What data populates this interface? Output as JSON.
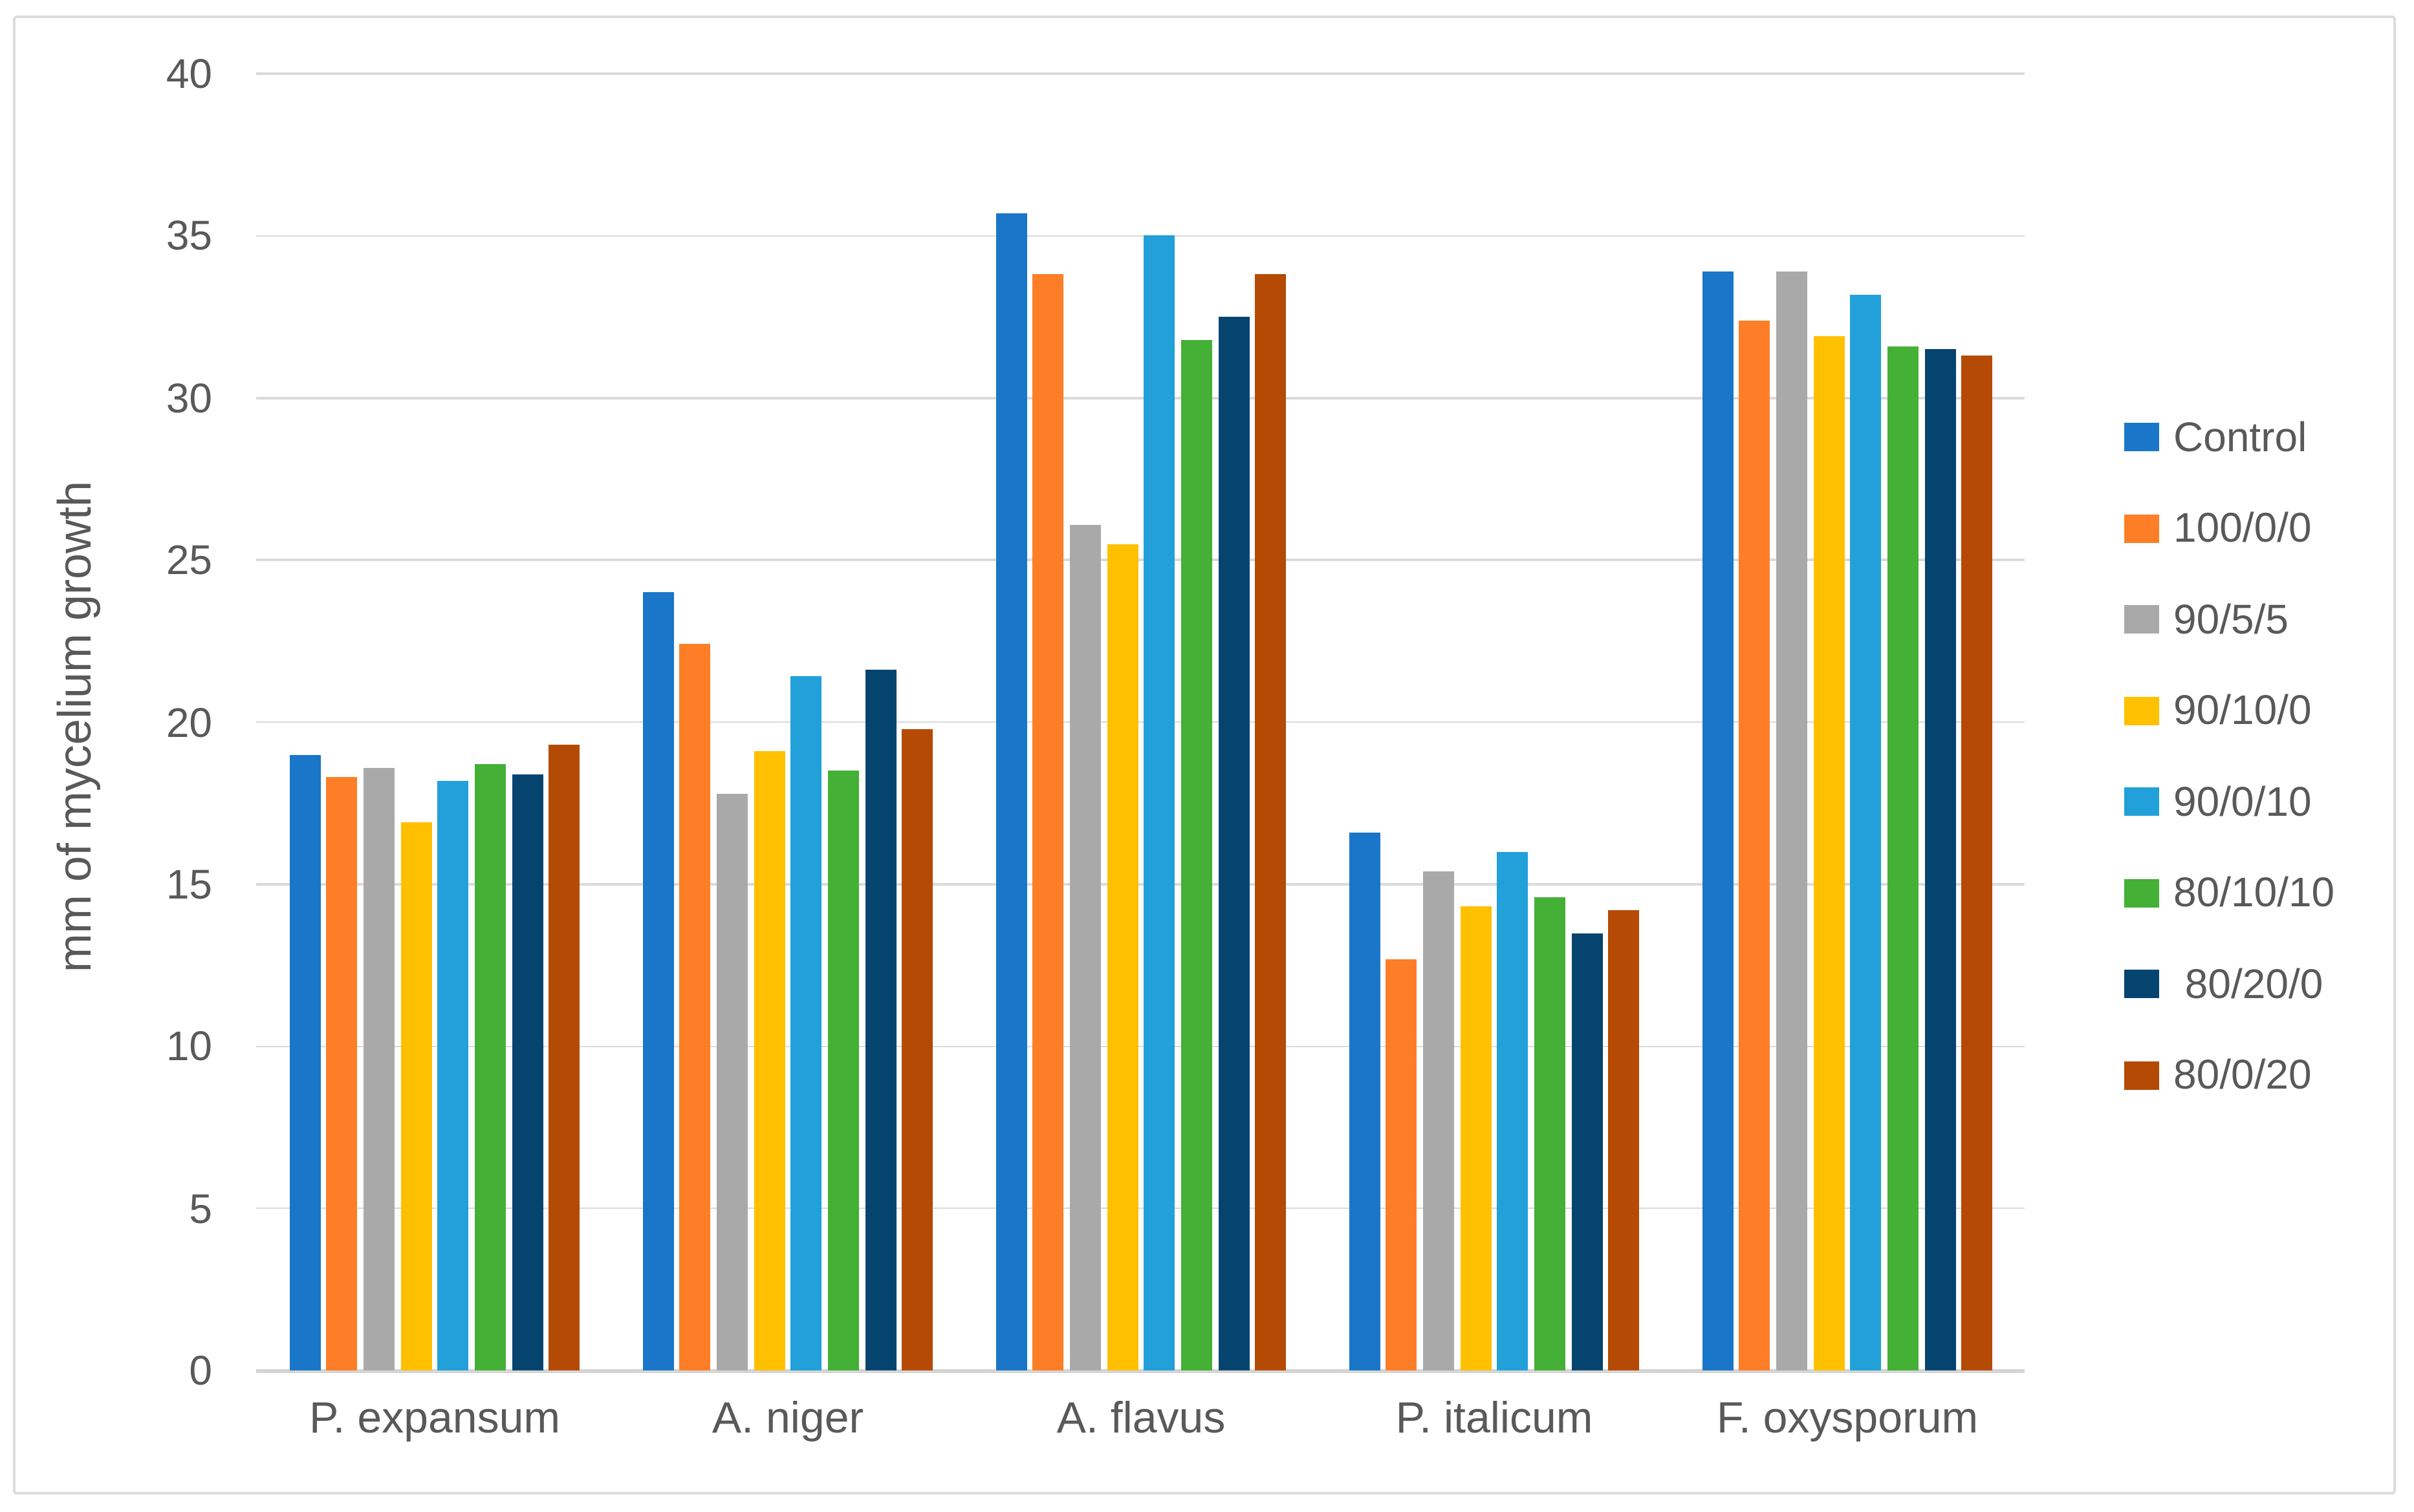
{
  "figure": {
    "background": "#ffffff",
    "border_color": "#DCDCDC",
    "text_color": "#595959",
    "gridline_color": "#DADADA",
    "axis_line_color": "#D4D4D4"
  },
  "chart_data": {
    "type": "bar",
    "title": "",
    "xlabel": "",
    "ylabel": "mm of mycelium growth",
    "ylim": [
      0,
      40
    ],
    "ytick_step": 5,
    "yticks": [
      0,
      5,
      10,
      15,
      20,
      25,
      30,
      35,
      40
    ],
    "grid": true,
    "legend_position": "right",
    "categories": [
      "P. expansum",
      "A. niger",
      "A. flavus",
      "P. italicum",
      "F. oxysporum"
    ],
    "series": [
      {
        "name": "Control",
        "color": "#1976C8",
        "values": [
          19.0,
          24.0,
          35.7,
          16.6,
          33.9
        ]
      },
      {
        "name": "100/0/0",
        "color": "#FD7E27",
        "values": [
          18.3,
          22.4,
          33.8,
          12.7,
          32.4
        ]
      },
      {
        "name": "90/5/5",
        "color": "#A9A9A9",
        "values": [
          18.6,
          17.8,
          26.1,
          15.4,
          33.9
        ]
      },
      {
        "name": "90/10/0",
        "color": "#FFC000",
        "values": [
          16.9,
          19.1,
          25.5,
          14.3,
          31.9
        ]
      },
      {
        "name": "90/0/10",
        "color": "#22A0D9",
        "values": [
          18.2,
          21.4,
          35.0,
          16.0,
          33.2
        ]
      },
      {
        "name": "80/10/10",
        "color": "#44B036",
        "values": [
          18.7,
          18.5,
          31.8,
          14.6,
          31.6
        ]
      },
      {
        "name": " 80/20/0",
        "color": "#064470",
        "values": [
          18.4,
          21.6,
          32.5,
          13.5,
          31.5
        ]
      },
      {
        "name": "80/0/20",
        "color": "#B54A04",
        "values": [
          19.3,
          19.8,
          33.8,
          14.2,
          31.3
        ]
      }
    ]
  }
}
